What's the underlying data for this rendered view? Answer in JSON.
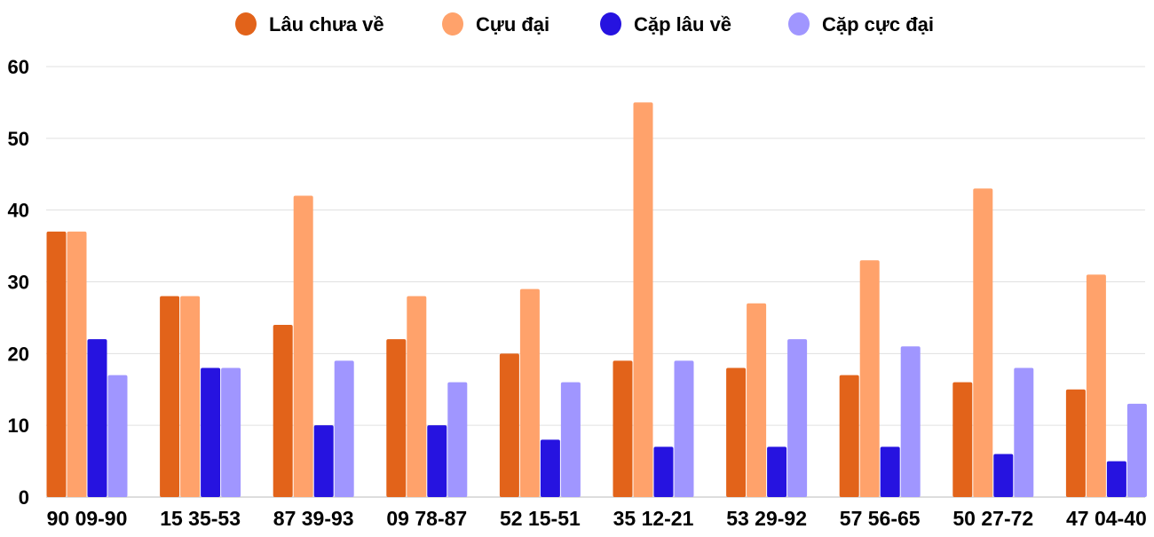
{
  "chart_data": {
    "type": "bar",
    "title": "",
    "xlabel": "",
    "ylabel": "",
    "ylim": [
      0,
      60
    ],
    "yticks": [
      0,
      10,
      20,
      30,
      40,
      50,
      60
    ],
    "grid": true,
    "legend_position": "top",
    "categories": [
      "90 09-90",
      "15 35-53",
      "87 39-93",
      "09 78-87",
      "52 15-51",
      "35 12-21",
      "53 29-92",
      "57 56-65",
      "50 27-72",
      "47 04-40"
    ],
    "series": [
      {
        "name": "Lâu chưa về",
        "color": "#E2631A",
        "values": [
          37,
          28,
          24,
          22,
          20,
          19,
          18,
          17,
          16,
          15
        ]
      },
      {
        "name": "Cựu đại",
        "color": "#FFA26B",
        "values": [
          37,
          28,
          42,
          28,
          29,
          55,
          27,
          33,
          43,
          31
        ]
      },
      {
        "name": "Cặp lâu về",
        "color": "#2613E0",
        "values": [
          22,
          18,
          10,
          10,
          8,
          7,
          7,
          7,
          6,
          5
        ]
      },
      {
        "name": "Cặp cực đại",
        "color": "#A096FF",
        "values": [
          17,
          18,
          19,
          16,
          16,
          19,
          22,
          21,
          18,
          13
        ]
      }
    ]
  }
}
